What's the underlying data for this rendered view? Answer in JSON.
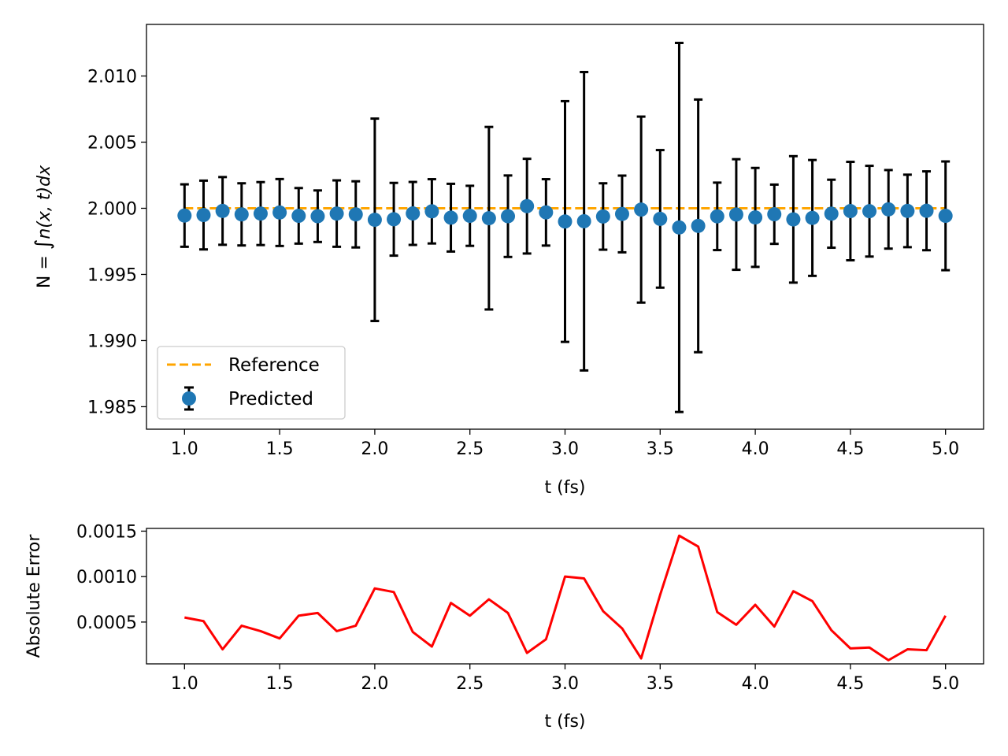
{
  "chart_data": [
    {
      "type": "scatter",
      "title": "",
      "xlabel": "t (fs)",
      "ylabel": "N = ∫n(x, t)dx",
      "ylabel_parts": {
        "lead": "N = ",
        "integral": "∫",
        "expr": "n(x, t)dx"
      },
      "xlim": [
        0.8,
        5.2
      ],
      "ylim": [
        1.9833,
        2.0139
      ],
      "xticks": [
        1.0,
        1.5,
        2.0,
        2.5,
        3.0,
        3.5,
        4.0,
        4.5,
        5.0
      ],
      "xtick_labels": [
        "1.0",
        "1.5",
        "2.0",
        "2.5",
        "3.0",
        "3.5",
        "4.0",
        "4.5",
        "5.0"
      ],
      "yticks": [
        1.985,
        1.99,
        1.995,
        2.0,
        2.005,
        2.01
      ],
      "ytick_labels": [
        "1.985",
        "1.990",
        "1.995",
        "2.000",
        "2.005",
        "2.010"
      ],
      "legend": {
        "position": "lower-left",
        "entries": [
          "Reference",
          "Predicted"
        ]
      },
      "reference": {
        "name": "Reference",
        "value": 2.0,
        "x_range": [
          1.0,
          5.0
        ],
        "color": "#ffa500",
        "style": "dashed"
      },
      "series": [
        {
          "name": "Predicted",
          "color": "#1f77b4",
          "errorbar_color": "#000000",
          "x": [
            1.0,
            1.1,
            1.2,
            1.3,
            1.4,
            1.5,
            1.6,
            1.7,
            1.8,
            1.9,
            2.0,
            2.1,
            2.2,
            2.3,
            2.4,
            2.5,
            2.6,
            2.7,
            2.8,
            2.9,
            3.0,
            3.1,
            3.2,
            3.3,
            3.4,
            3.5,
            3.6,
            3.7,
            3.8,
            3.9,
            4.0,
            4.1,
            4.2,
            4.3,
            4.4,
            4.5,
            4.6,
            4.7,
            4.8,
            4.9,
            5.0
          ],
          "y": [
            1.99945,
            1.99949,
            1.9998,
            1.99954,
            1.9996,
            1.99968,
            1.99943,
            1.9994,
            1.9996,
            1.99954,
            1.99913,
            1.99917,
            1.99961,
            1.99977,
            1.99929,
            1.99943,
            1.99925,
            1.9994,
            2.00016,
            1.99969,
            1.999,
            1.99902,
            1.99938,
            1.99957,
            1.9999,
            1.9992,
            1.99855,
            1.99867,
            1.99939,
            1.99953,
            1.99931,
            1.99955,
            1.99916,
            1.99927,
            1.99959,
            1.99979,
            1.99978,
            1.99992,
            1.9998,
            1.99981,
            1.99943
          ],
          "yerr": [
            0.00236,
            0.0026,
            0.00256,
            0.00235,
            0.00238,
            0.00253,
            0.0021,
            0.00195,
            0.00251,
            0.0025,
            0.00765,
            0.00275,
            0.00238,
            0.00243,
            0.00256,
            0.00227,
            0.0069,
            0.00308,
            0.00358,
            0.00251,
            0.0091,
            0.01128,
            0.00251,
            0.0029,
            0.00703,
            0.0052,
            0.01395,
            0.00955,
            0.00255,
            0.00418,
            0.00374,
            0.00224,
            0.00478,
            0.00438,
            0.00257,
            0.00372,
            0.00343,
            0.00297,
            0.00274,
            0.00298,
            0.00411
          ]
        }
      ]
    },
    {
      "type": "line",
      "title": "",
      "xlabel": "t (fs)",
      "ylabel": "Absolute Error",
      "xlim": [
        0.8,
        5.2
      ],
      "ylim": [
        4e-05,
        0.00153
      ],
      "xticks": [
        1.0,
        1.5,
        2.0,
        2.5,
        3.0,
        3.5,
        4.0,
        4.5,
        5.0
      ],
      "xtick_labels": [
        "1.0",
        "1.5",
        "2.0",
        "2.5",
        "3.0",
        "3.5",
        "4.0",
        "4.5",
        "5.0"
      ],
      "yticks": [
        0.0005,
        0.001,
        0.0015
      ],
      "ytick_labels": [
        "0.0005",
        "0.0010",
        "0.0015"
      ],
      "series": [
        {
          "name": "Absolute Error",
          "color": "#ff0000",
          "x": [
            1.0,
            1.1,
            1.2,
            1.3,
            1.4,
            1.5,
            1.6,
            1.7,
            1.8,
            1.9,
            2.0,
            2.1,
            2.2,
            2.3,
            2.4,
            2.5,
            2.6,
            2.7,
            2.8,
            2.9,
            3.0,
            3.1,
            3.2,
            3.3,
            3.4,
            3.5,
            3.6,
            3.7,
            3.8,
            3.9,
            4.0,
            4.1,
            4.2,
            4.3,
            4.4,
            4.5,
            4.6,
            4.7,
            4.8,
            4.9,
            5.0
          ],
          "y": [
            0.00055,
            0.00051,
            0.0002,
            0.00046,
            0.0004,
            0.00032,
            0.00057,
            0.0006,
            0.0004,
            0.00046,
            0.00087,
            0.00083,
            0.00039,
            0.00023,
            0.00071,
            0.00057,
            0.00075,
            0.0006,
            0.00016,
            0.00031,
            0.001,
            0.00098,
            0.00062,
            0.00043,
            0.0001,
            0.0008,
            0.00145,
            0.00133,
            0.00061,
            0.00047,
            0.00069,
            0.00045,
            0.00084,
            0.00073,
            0.00041,
            0.00021,
            0.00022,
            8e-05,
            0.0002,
            0.00019,
            0.00057
          ]
        }
      ]
    }
  ]
}
